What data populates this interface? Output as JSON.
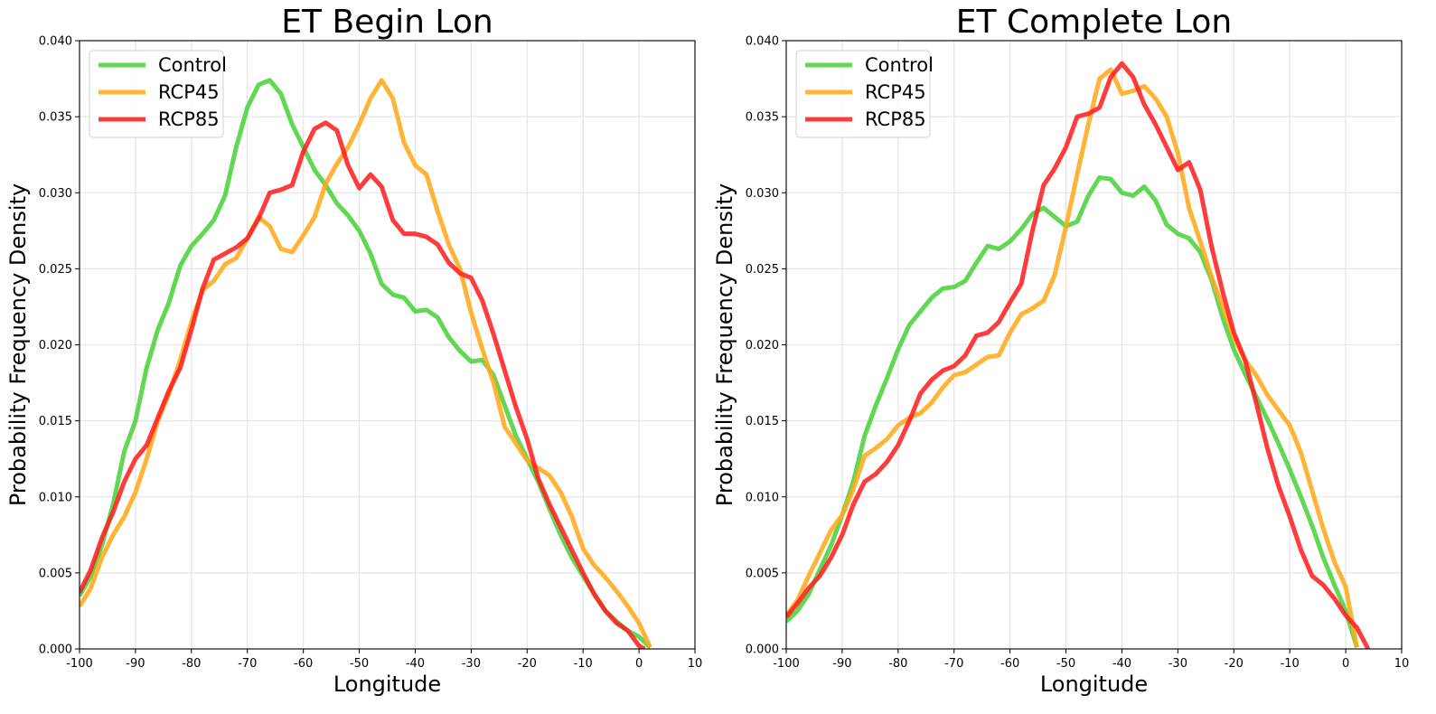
{
  "chart_data": [
    {
      "type": "line",
      "title": "ET Begin Lon",
      "xlabel": "Longitude",
      "ylabel": "Probability Frequency Density",
      "xlim": [
        -100,
        10
      ],
      "ylim": [
        0,
        0.04
      ],
      "xticks": [
        "-100",
        "-90",
        "-80",
        "-70",
        "-60",
        "-50",
        "-40",
        "-30",
        "-20",
        "-10",
        "0",
        "10"
      ],
      "yticks": [
        "0.000",
        "0.005",
        "0.010",
        "0.015",
        "0.020",
        "0.025",
        "0.030",
        "0.035",
        "0.040"
      ],
      "grid": true,
      "legend_position": "top-left",
      "series": [
        {
          "name": "Control",
          "color": "#4cd13c",
          "x": [
            -100,
            -98,
            -96,
            -94,
            -92,
            -90,
            -88,
            -86,
            -84,
            -82,
            -80,
            -78,
            -76,
            -74,
            -72,
            -70,
            -68,
            -66,
            -64,
            -62,
            -60,
            -58,
            -56,
            -54,
            -52,
            -50,
            -48,
            -46,
            -44,
            -42,
            -40,
            -38,
            -36,
            -34,
            -32,
            -30,
            -28,
            -26,
            -24,
            -22,
            -20,
            -18,
            -16,
            -14,
            -12,
            -10,
            -8,
            -6,
            -4,
            -2,
            0,
            2
          ],
          "y": [
            0.0035,
            0.0048,
            0.0068,
            0.0095,
            0.013,
            0.015,
            0.0185,
            0.021,
            0.0228,
            0.0252,
            0.0265,
            0.0273,
            0.0282,
            0.0298,
            0.033,
            0.0356,
            0.0371,
            0.0374,
            0.0365,
            0.0345,
            0.033,
            0.0315,
            0.0305,
            0.0293,
            0.0285,
            0.0275,
            0.026,
            0.024,
            0.0233,
            0.0231,
            0.0222,
            0.0223,
            0.0218,
            0.0205,
            0.0196,
            0.0189,
            0.019,
            0.018,
            0.016,
            0.014,
            0.0125,
            0.011,
            0.0092,
            0.0075,
            0.006,
            0.0048,
            0.0036,
            0.0025,
            0.0018,
            0.0012,
            0.0008,
            0.0001
          ]
        },
        {
          "name": "RCP45",
          "color": "#ffaa1c",
          "x": [
            -100,
            -98,
            -96,
            -94,
            -92,
            -90,
            -88,
            -86,
            -84,
            -82,
            -80,
            -78,
            -76,
            -74,
            -72,
            -70,
            -68,
            -66,
            -64,
            -62,
            -60,
            -58,
            -56,
            -54,
            -52,
            -50,
            -48,
            -46,
            -44,
            -42,
            -40,
            -38,
            -36,
            -34,
            -32,
            -30,
            -28,
            -26,
            -24,
            -22,
            -20,
            -18,
            -16,
            -14,
            -12,
            -10,
            -8,
            -6,
            -4,
            -2,
            0,
            2
          ],
          "y": [
            0.0028,
            0.004,
            0.006,
            0.0075,
            0.0087,
            0.0103,
            0.0125,
            0.015,
            0.0168,
            0.019,
            0.0215,
            0.0236,
            0.0242,
            0.0253,
            0.0257,
            0.027,
            0.0284,
            0.0278,
            0.0263,
            0.0261,
            0.0272,
            0.0284,
            0.0306,
            0.0319,
            0.033,
            0.0345,
            0.0362,
            0.0374,
            0.0362,
            0.0333,
            0.0318,
            0.0312,
            0.0288,
            0.0266,
            0.025,
            0.0221,
            0.0197,
            0.0175,
            0.0146,
            0.0135,
            0.0124,
            0.0119,
            0.0114,
            0.0103,
            0.0087,
            0.0066,
            0.0055,
            0.0047,
            0.0038,
            0.0028,
            0.0017,
            0.0001
          ]
        },
        {
          "name": "RCP85",
          "color": "#ff2020",
          "x": [
            -100,
            -98,
            -96,
            -94,
            -92,
            -90,
            -88,
            -86,
            -84,
            -82,
            -80,
            -78,
            -76,
            -74,
            -72,
            -70,
            -68,
            -66,
            -64,
            -62,
            -60,
            -58,
            -56,
            -54,
            -52,
            -50,
            -48,
            -46,
            -44,
            -42,
            -40,
            -38,
            -36,
            -34,
            -32,
            -30,
            -28,
            -26,
            -24,
            -22,
            -20,
            -18,
            -16,
            -14,
            -12,
            -10,
            -8,
            -6,
            -4,
            -2,
            0,
            1
          ],
          "y": [
            0.0037,
            0.0052,
            0.0073,
            0.009,
            0.011,
            0.0125,
            0.0134,
            0.0152,
            0.017,
            0.0185,
            0.021,
            0.0237,
            0.0256,
            0.026,
            0.0264,
            0.027,
            0.0283,
            0.03,
            0.0302,
            0.0305,
            0.0327,
            0.0342,
            0.0346,
            0.0341,
            0.0318,
            0.0303,
            0.0312,
            0.0304,
            0.0282,
            0.0273,
            0.0273,
            0.0271,
            0.0266,
            0.0254,
            0.0247,
            0.0244,
            0.0229,
            0.0207,
            0.0183,
            0.0159,
            0.0138,
            0.0112,
            0.0095,
            0.008,
            0.0065,
            0.005,
            0.0036,
            0.0025,
            0.0017,
            0.0012,
            0.0002,
            0.0
          ]
        }
      ]
    },
    {
      "type": "line",
      "title": "ET Complete Lon",
      "xlabel": "Longitude",
      "ylabel": "Probability Frequency Density",
      "xlim": [
        -100,
        10
      ],
      "ylim": [
        0,
        0.04
      ],
      "xticks": [
        "-100",
        "-90",
        "-80",
        "-70",
        "-60",
        "-50",
        "-40",
        "-30",
        "-20",
        "-10",
        "0",
        "10"
      ],
      "yticks": [
        "0.000",
        "0.005",
        "0.010",
        "0.015",
        "0.020",
        "0.025",
        "0.030",
        "0.035",
        "0.040"
      ],
      "grid": true,
      "legend_position": "top-left",
      "series": [
        {
          "name": "Control",
          "color": "#4cd13c",
          "x": [
            -100,
            -98,
            -96,
            -94,
            -92,
            -90,
            -88,
            -86,
            -84,
            -82,
            -80,
            -78,
            -76,
            -74,
            -72,
            -70,
            -68,
            -66,
            -64,
            -62,
            -60,
            -58,
            -56,
            -54,
            -52,
            -50,
            -48,
            -46,
            -44,
            -42,
            -40,
            -38,
            -36,
            -34,
            -32,
            -30,
            -28,
            -26,
            -24,
            -22,
            -20,
            -18,
            -16,
            -14,
            -12,
            -10,
            -8,
            -6,
            -4,
            -2,
            0,
            2
          ],
          "y": [
            0.0018,
            0.0025,
            0.0036,
            0.0052,
            0.0068,
            0.0088,
            0.011,
            0.014,
            0.016,
            0.0178,
            0.0197,
            0.0213,
            0.0222,
            0.0231,
            0.0237,
            0.0238,
            0.0242,
            0.0254,
            0.0265,
            0.0263,
            0.0268,
            0.0276,
            0.0286,
            0.029,
            0.0284,
            0.0278,
            0.0281,
            0.0298,
            0.031,
            0.0309,
            0.03,
            0.0298,
            0.0304,
            0.0295,
            0.0279,
            0.0273,
            0.027,
            0.0261,
            0.0243,
            0.0218,
            0.0197,
            0.0181,
            0.0166,
            0.0151,
            0.0135,
            0.0118,
            0.01,
            0.0081,
            0.006,
            0.0042,
            0.0025,
            0.0001
          ]
        },
        {
          "name": "RCP45",
          "color": "#ffaa1c",
          "x": [
            -100,
            -98,
            -96,
            -94,
            -92,
            -90,
            -88,
            -86,
            -84,
            -82,
            -80,
            -78,
            -76,
            -74,
            -72,
            -70,
            -68,
            -66,
            -64,
            -62,
            -60,
            -58,
            -56,
            -54,
            -52,
            -50,
            -48,
            -46,
            -44,
            -42,
            -40,
            -38,
            -36,
            -34,
            -32,
            -30,
            -28,
            -26,
            -24,
            -22,
            -20,
            -18,
            -16,
            -14,
            -12,
            -10,
            -8,
            -6,
            -4,
            -2,
            0,
            2
          ],
          "y": [
            0.0022,
            0.0032,
            0.0048,
            0.0063,
            0.0078,
            0.0088,
            0.0105,
            0.0127,
            0.0132,
            0.0138,
            0.0147,
            0.0152,
            0.0155,
            0.0162,
            0.0172,
            0.018,
            0.0182,
            0.0187,
            0.0192,
            0.0193,
            0.0208,
            0.022,
            0.0224,
            0.0229,
            0.0246,
            0.0278,
            0.0312,
            0.0345,
            0.0375,
            0.0381,
            0.0365,
            0.0367,
            0.037,
            0.0362,
            0.035,
            0.0326,
            0.029,
            0.0268,
            0.0245,
            0.0225,
            0.0205,
            0.019,
            0.018,
            0.0167,
            0.0157,
            0.0147,
            0.0129,
            0.0104,
            0.0079,
            0.0057,
            0.0041,
            0.0001
          ]
        },
        {
          "name": "RCP85",
          "color": "#ff2020",
          "x": [
            -100,
            -98,
            -96,
            -94,
            -92,
            -90,
            -88,
            -86,
            -84,
            -82,
            -80,
            -78,
            -76,
            -74,
            -72,
            -70,
            -68,
            -66,
            -64,
            -62,
            -60,
            -58,
            -56,
            -54,
            -52,
            -50,
            -48,
            -46,
            -44,
            -42,
            -40,
            -38,
            -36,
            -34,
            -32,
            -30,
            -28,
            -26,
            -24,
            -22,
            -20,
            -18,
            -16,
            -14,
            -12,
            -10,
            -8,
            -6,
            -4,
            -2,
            0,
            2,
            4
          ],
          "y": [
            0.0021,
            0.003,
            0.004,
            0.0048,
            0.006,
            0.0075,
            0.0095,
            0.011,
            0.0115,
            0.0123,
            0.0134,
            0.015,
            0.0168,
            0.0177,
            0.0183,
            0.0186,
            0.0193,
            0.0206,
            0.0208,
            0.0215,
            0.0228,
            0.024,
            0.0275,
            0.0305,
            0.0316,
            0.033,
            0.035,
            0.0352,
            0.0356,
            0.0376,
            0.0385,
            0.0376,
            0.0358,
            0.0345,
            0.033,
            0.0315,
            0.032,
            0.0302,
            0.0265,
            0.0235,
            0.0208,
            0.019,
            0.0162,
            0.0132,
            0.0107,
            0.0087,
            0.0065,
            0.0048,
            0.0042,
            0.0033,
            0.0022,
            0.0014,
            0.0
          ]
        }
      ]
    }
  ]
}
